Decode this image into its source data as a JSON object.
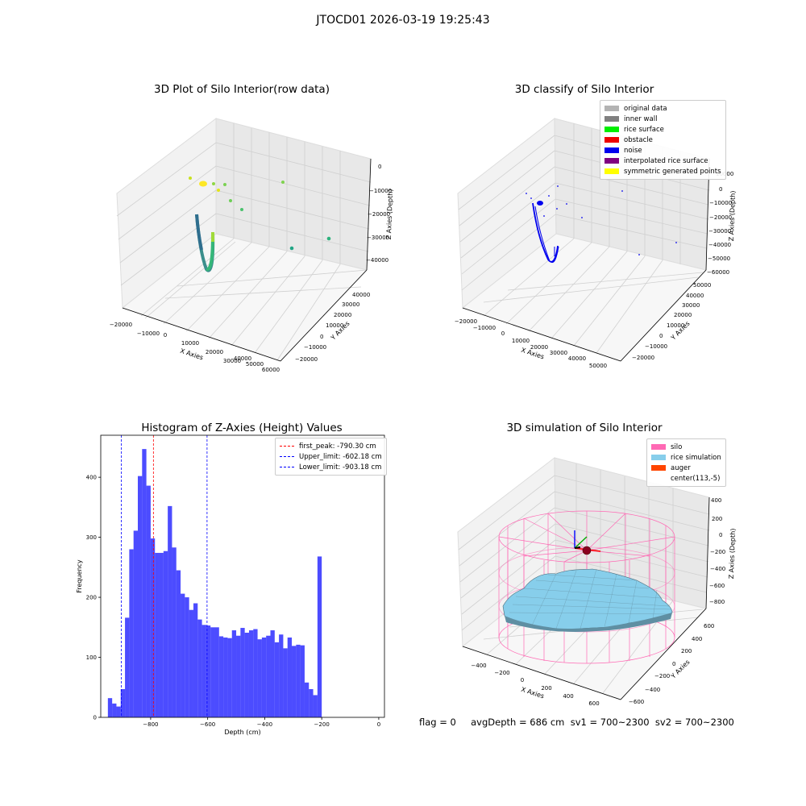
{
  "suptitle": "JTOCD01 2026-03-19 19:25:43",
  "panel1": {
    "title": "3D Plot of Silo Interior(row data)",
    "xlabel": "X Axies",
    "ylabel": "Y Axies",
    "zlabel": "Z Axies (Depth)",
    "xticks": [
      "−20000",
      "−10000",
      "0",
      "10000",
      "20000",
      "30000",
      "40000",
      "50000",
      "60000"
    ],
    "yticks": [
      "−20000",
      "−10000",
      "0",
      "10000",
      "20000",
      "30000",
      "40000"
    ],
    "zticks": [
      "0",
      "−10000",
      "−20000",
      "−30000",
      "−40000"
    ]
  },
  "panel2": {
    "title": "3D classify of Silo Interior",
    "xlabel": "X Axies",
    "ylabel": "Y Axies",
    "zlabel": "Z Axies (Depth)",
    "xticks": [
      "−20000",
      "−10000",
      "0",
      "10000",
      "20000",
      "30000",
      "40000",
      "50000"
    ],
    "yticks": [
      "−20000",
      "−10000",
      "0",
      "10000",
      "20000",
      "30000",
      "40000",
      "50000"
    ],
    "zticks": [
      "10000",
      "0",
      "−10000",
      "−20000",
      "−30000",
      "−40000",
      "−50000",
      "−60000"
    ],
    "legend": [
      {
        "label": "original data",
        "color": "#b3b3b3"
      },
      {
        "label": "inner wall",
        "color": "#808080"
      },
      {
        "label": "rice surface",
        "color": "#00ee00"
      },
      {
        "label": "obstacle",
        "color": "#ee0000"
      },
      {
        "label": "noise",
        "color": "#0000ee"
      },
      {
        "label": "interpolated rice surface",
        "color": "#800080"
      },
      {
        "label": "symmetric generated points",
        "color": "#ffff00"
      }
    ]
  },
  "panel4": {
    "title": "3D simulation of Silo Interior",
    "xlabel": "X Axies",
    "ylabel": "Y Axies",
    "zlabel": "Z Axies (Depth)",
    "xticks": [
      "−400",
      "−200",
      "0",
      "200",
      "400",
      "600"
    ],
    "yticks": [
      "−600",
      "−400",
      "−200",
      "0",
      "200",
      "400",
      "600"
    ],
    "zticks": [
      "400",
      "200",
      "0",
      "−200",
      "−400",
      "−600",
      "−800"
    ],
    "legend": [
      {
        "label": "silo",
        "color": "#ff69b4"
      },
      {
        "label": "rice simulation",
        "color": "#87ceeb"
      },
      {
        "label": "auger",
        "color": "#ff4500"
      },
      {
        "label": "center(113,-5)",
        "color": ""
      }
    ]
  },
  "chart_data": [
    {
      "type": "bar",
      "title": "Histogram of Z-Axies (Height) Values",
      "xlabel": "Depth (cm)",
      "ylabel": "Frequency",
      "xlim": [
        -975,
        20
      ],
      "ylim": [
        0,
        470
      ],
      "xticks": [
        -800,
        -600,
        -400,
        -200,
        0
      ],
      "xtick_labels": [
        "−800",
        "−600",
        "−400",
        "−200",
        "0"
      ],
      "yticks": [
        0,
        100,
        200,
        300,
        400
      ],
      "bin_start": -950,
      "bin_width": 15,
      "values": [
        32,
        23,
        18,
        47,
        166,
        280,
        311,
        402,
        447,
        386,
        298,
        274,
        274,
        277,
        352,
        283,
        245,
        206,
        200,
        179,
        190,
        163,
        154,
        153,
        150,
        150,
        135,
        133,
        132,
        145,
        136,
        149,
        141,
        145,
        147,
        130,
        133,
        136,
        145,
        125,
        138,
        115,
        133,
        119,
        121,
        120,
        58,
        47,
        37,
        268
      ],
      "color": "#0000ff",
      "vlines": [
        {
          "label": "first_peak: -790.30 cm",
          "x": -790.3,
          "color": "#ff0000"
        },
        {
          "label": "Upper_limit: -602.18 cm",
          "x": -602.18,
          "color": "#0000ff"
        },
        {
          "label": "Lower_limit: -903.18 cm",
          "x": -903.18,
          "color": "#0000ff"
        }
      ]
    }
  ],
  "footer": "flag = 0     avgDepth = 686 cm  sv1 = 700~2300  sv2 = 700~2300"
}
